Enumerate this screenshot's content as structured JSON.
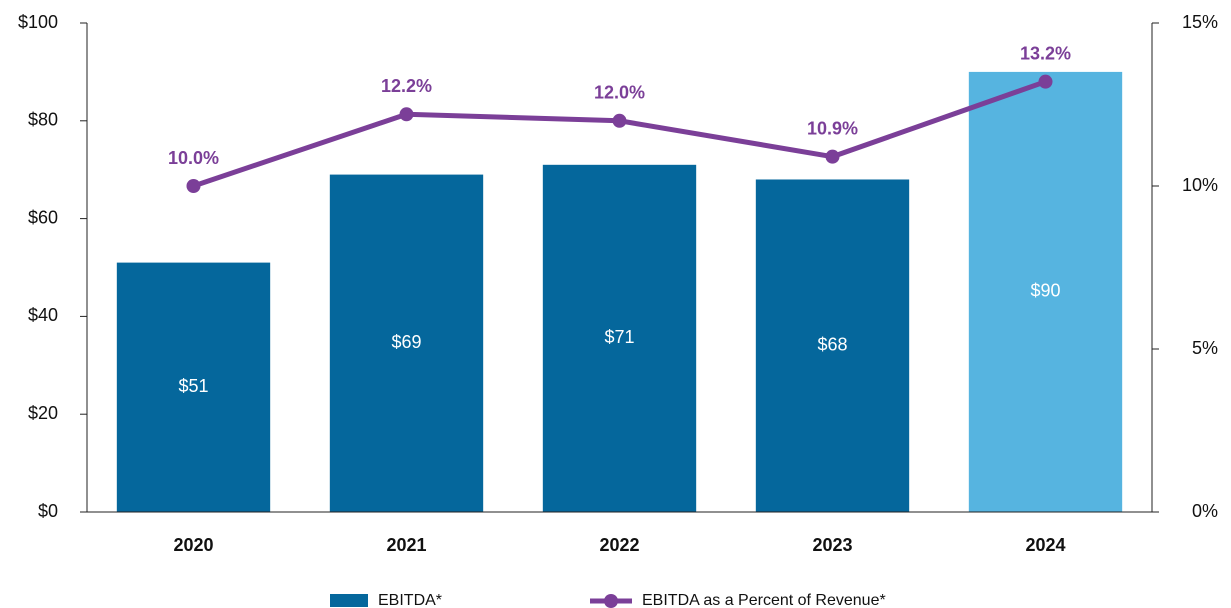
{
  "chart_data": {
    "type": "bar_line",
    "categories": [
      "2020",
      "2021",
      "2022",
      "2023",
      "2024"
    ],
    "series": [
      {
        "name": "EBITDA*",
        "type": "bar",
        "colors": [
          "#05679c",
          "#05679c",
          "#05679c",
          "#05679c",
          "#56b4e0"
        ],
        "color": "#05679c",
        "values": [
          51,
          69,
          71,
          68,
          90
        ],
        "value_labels": [
          "$51",
          "$69",
          "$71",
          "$68",
          "$90"
        ]
      },
      {
        "name": "EBITDA as a Percent of Revenue*",
        "type": "line",
        "axis": "y2",
        "color": "#7b3f98",
        "values": [
          10.0,
          12.2,
          12.0,
          10.9,
          13.2
        ],
        "value_labels": [
          "10.0%",
          "12.2%",
          "12.0%",
          "10.9%",
          "13.2%"
        ]
      }
    ],
    "ylim": [
      0,
      100
    ],
    "yticks": [
      {
        "value": 0,
        "label": "$0"
      },
      {
        "value": 20,
        "label": "$20"
      },
      {
        "value": 40,
        "label": "$40"
      },
      {
        "value": 60,
        "label": "$60"
      },
      {
        "value": 80,
        "label": "$80"
      },
      {
        "value": 100,
        "label": "$100"
      }
    ],
    "y2lim": [
      0,
      15
    ],
    "y2ticks": [
      {
        "value": 0,
        "label": "0%"
      },
      {
        "value": 5,
        "label": "5%"
      },
      {
        "value": 10,
        "label": "10%"
      },
      {
        "value": 15,
        "label": "15%"
      }
    ],
    "grid": false,
    "legend": "bottom"
  }
}
